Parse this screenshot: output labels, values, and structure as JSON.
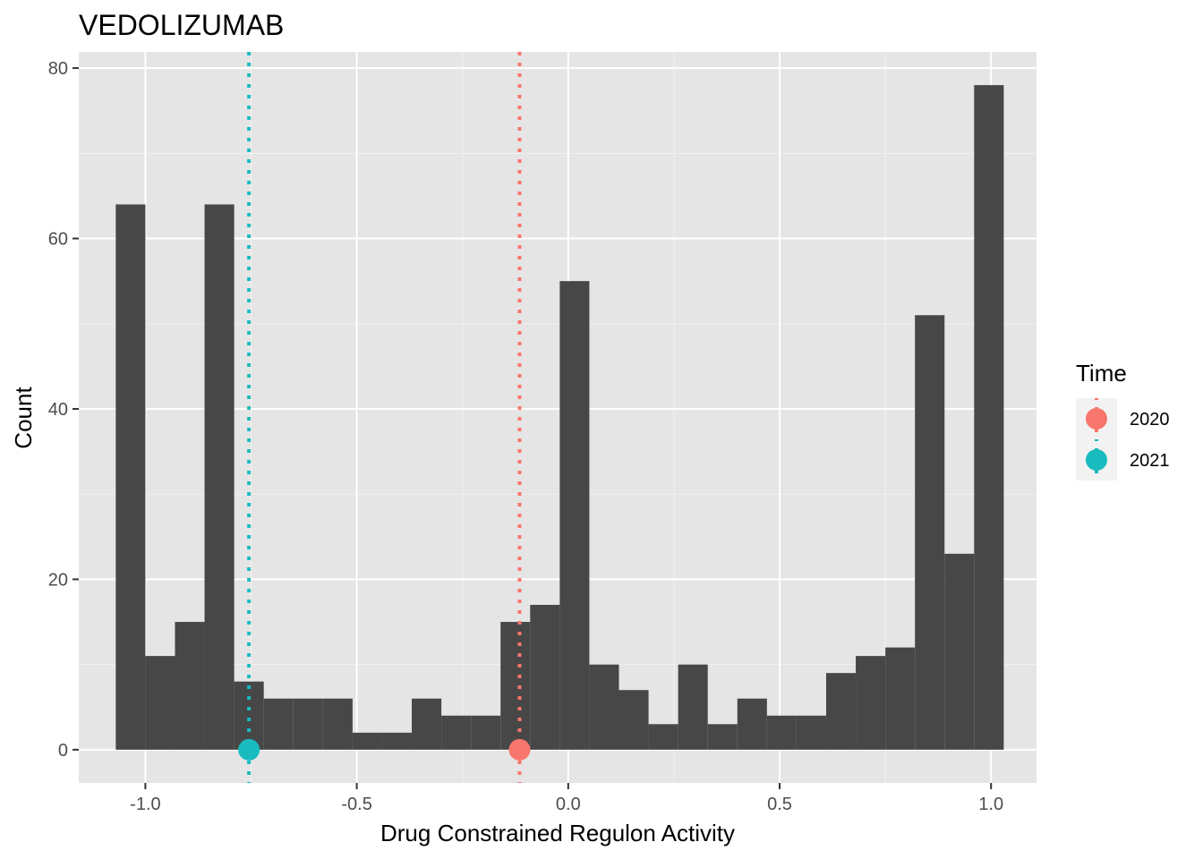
{
  "chart_data": {
    "type": "bar",
    "title": "VEDOLIZUMAB",
    "xlabel": "Drug Constrained Regulon Activity",
    "ylabel": "Count",
    "xlim": [
      -1.1575,
      1.1075
    ],
    "ylim": [
      -3.9,
      81.9
    ],
    "x_ticks": [
      {
        "value": -1.0,
        "label": "-1.0"
      },
      {
        "value": -0.5,
        "label": "-0.5"
      },
      {
        "value": 0.0,
        "label": "0.0"
      },
      {
        "value": 0.5,
        "label": "0.5"
      },
      {
        "value": 1.0,
        "label": "1.0"
      }
    ],
    "y_ticks": [
      {
        "value": 0,
        "label": "0"
      },
      {
        "value": 20,
        "label": "20"
      },
      {
        "value": 40,
        "label": "40"
      },
      {
        "value": 60,
        "label": "60"
      },
      {
        "value": 80,
        "label": "80"
      }
    ],
    "bin_width": 0.07,
    "bins": [
      {
        "x0": -1.07,
        "x1": -1.0,
        "count": 64
      },
      {
        "x0": -1.0,
        "x1": -0.93,
        "count": 11
      },
      {
        "x0": -0.93,
        "x1": -0.86,
        "count": 15
      },
      {
        "x0": -0.86,
        "x1": -0.79,
        "count": 64
      },
      {
        "x0": -0.79,
        "x1": -0.72,
        "count": 8
      },
      {
        "x0": -0.72,
        "x1": -0.65,
        "count": 6
      },
      {
        "x0": -0.65,
        "x1": -0.58,
        "count": 6
      },
      {
        "x0": -0.58,
        "x1": -0.51,
        "count": 6
      },
      {
        "x0": -0.51,
        "x1": -0.44,
        "count": 2
      },
      {
        "x0": -0.44,
        "x1": -0.37,
        "count": 2
      },
      {
        "x0": -0.37,
        "x1": -0.3,
        "count": 6
      },
      {
        "x0": -0.3,
        "x1": -0.23,
        "count": 4
      },
      {
        "x0": -0.23,
        "x1": -0.16,
        "count": 4
      },
      {
        "x0": -0.16,
        "x1": -0.09,
        "count": 15
      },
      {
        "x0": -0.09,
        "x1": -0.02,
        "count": 17
      },
      {
        "x0": -0.02,
        "x1": 0.05,
        "count": 55
      },
      {
        "x0": 0.05,
        "x1": 0.12,
        "count": 10
      },
      {
        "x0": 0.12,
        "x1": 0.19,
        "count": 7
      },
      {
        "x0": 0.19,
        "x1": 0.26,
        "count": 3
      },
      {
        "x0": 0.26,
        "x1": 0.33,
        "count": 10
      },
      {
        "x0": 0.33,
        "x1": 0.4,
        "count": 3
      },
      {
        "x0": 0.4,
        "x1": 0.47,
        "count": 6
      },
      {
        "x0": 0.47,
        "x1": 0.54,
        "count": 4
      },
      {
        "x0": 0.54,
        "x1": 0.61,
        "count": 4
      },
      {
        "x0": 0.61,
        "x1": 0.68,
        "count": 9
      },
      {
        "x0": 0.68,
        "x1": 0.75,
        "count": 11
      },
      {
        "x0": 0.75,
        "x1": 0.82,
        "count": 12
      },
      {
        "x0": 0.82,
        "x1": 0.89,
        "count": 51
      },
      {
        "x0": 0.89,
        "x1": 0.96,
        "count": 23
      },
      {
        "x0": 0.96,
        "x1": 1.03,
        "count": 78
      }
    ],
    "bar_color": "#474747",
    "panel_background": "#e5e5e5",
    "grid": true,
    "markers": [
      {
        "time": "2020",
        "x": -0.115,
        "y": 0,
        "color": "#f8766d"
      },
      {
        "time": "2021",
        "x": -0.755,
        "y": 0,
        "color": "#19bbbf"
      }
    ],
    "legend": {
      "title": "Time",
      "position": "right",
      "entries": [
        {
          "label": "2020",
          "color": "#f8766d"
        },
        {
          "label": "2021",
          "color": "#19bbbf"
        }
      ]
    }
  }
}
